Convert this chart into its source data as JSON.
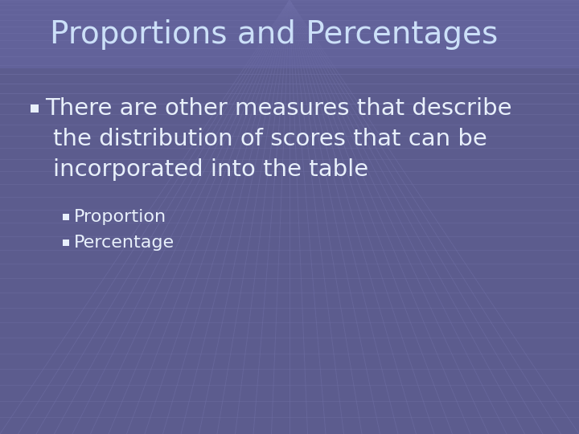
{
  "title": "Proportions and Percentages",
  "title_color": "#cce0f8",
  "title_fontsize": 28,
  "bg_color": "#5c5c8e",
  "grid_line_color": "#7272a8",
  "bullet1_line1": "There are other measures that describe",
  "bullet1_line2": "the distribution of scores that can be",
  "bullet1_line3": "incorporated into the table",
  "bullet1_color": "#e8f0fb",
  "bullet1_fontsize": 21,
  "sub_bullet1": "Proportion",
  "sub_bullet2": "Percentage",
  "sub_bullet_color": "#e8f0fb",
  "sub_bullet_fontsize": 16,
  "bullet_marker_color": "#e8f0fb",
  "title_box_color": "#6868a4"
}
